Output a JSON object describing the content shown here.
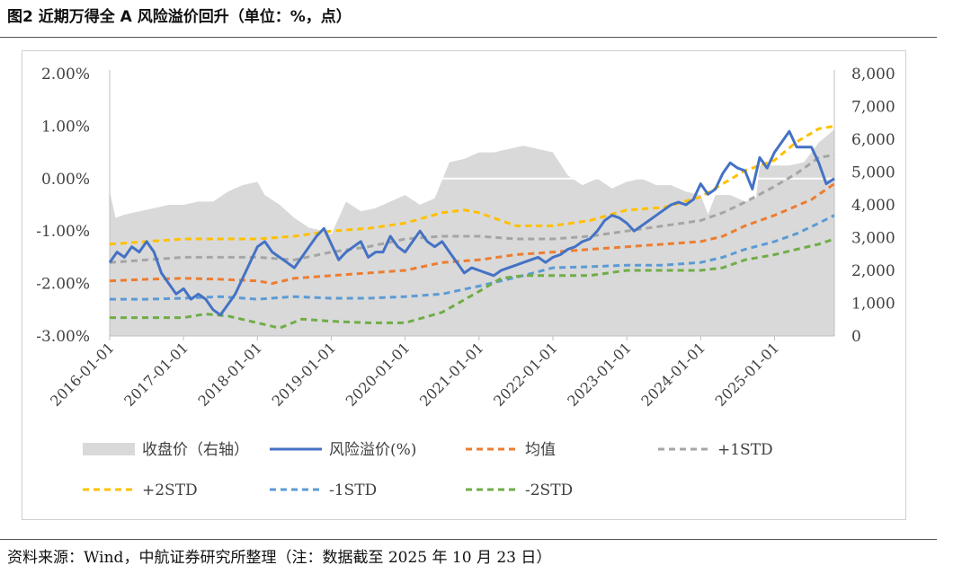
{
  "figure": {
    "title": "图2  近期万得全 A 风险溢价回升（单位：%，点）",
    "source": "资料来源：Wind，中航证券研究所整理（注：数据截至 2025 年 10 月 23 日）"
  },
  "colors": {
    "index": "#d9d9d9",
    "premium": "#4472c4",
    "mean": "#ed7d31",
    "plus1": "#a5a5a5",
    "plus2": "#ffc000",
    "minus1": "#5b9bd5",
    "minus2": "#70ad47"
  },
  "chart_data": {
    "type": "line",
    "title": "",
    "xlabel": "",
    "ylabel": "",
    "y_left_range": [
      -3,
      2
    ],
    "y_right_range": [
      0,
      8000
    ],
    "y_left_ticks": [
      "2.00%",
      "1.00%",
      "0.00%",
      "-1.00%",
      "-2.00%",
      "-3.00%"
    ],
    "y_right_ticks": [
      "8,000",
      "7,000",
      "6,000",
      "5,000",
      "4,000",
      "3,000",
      "2,000",
      "1,000",
      "0"
    ],
    "x_range": [
      2016.0,
      2025.81
    ],
    "x_ticks": [
      "2016-01-01",
      "2017-01-01",
      "2018-01-01",
      "2019-01-01",
      "2020-01-01",
      "2021-01-01",
      "2022-01-01",
      "2023-01-01",
      "2024-01-01",
      "2025-01-01"
    ],
    "grid": false,
    "legend_position": "bottom",
    "area": {
      "name": "收盘价（右轴）",
      "axis": "right",
      "x": [
        2016.0,
        2016.08,
        2016.2,
        2016.4,
        2016.6,
        2016.8,
        2017.0,
        2017.2,
        2017.4,
        2017.6,
        2017.8,
        2018.0,
        2018.1,
        2018.3,
        2018.5,
        2018.7,
        2018.9,
        2019.0,
        2019.2,
        2019.4,
        2019.6,
        2019.8,
        2020.0,
        2020.2,
        2020.4,
        2020.6,
        2020.8,
        2021.0,
        2021.2,
        2021.4,
        2021.6,
        2021.8,
        2022.0,
        2022.2,
        2022.4,
        2022.6,
        2022.8,
        2023.0,
        2023.2,
        2023.4,
        2023.6,
        2023.8,
        2024.0,
        2024.1,
        2024.2,
        2024.4,
        2024.6,
        2024.75,
        2024.8,
        2025.0,
        2025.2,
        2025.4,
        2025.6,
        2025.81
      ],
      "values": [
        4400,
        3600,
        3700,
        3800,
        3900,
        4000,
        4000,
        4100,
        4100,
        4400,
        4600,
        4700,
        4300,
        4000,
        3600,
        3300,
        3200,
        3100,
        4100,
        3800,
        3900,
        4100,
        4300,
        4000,
        4200,
        5300,
        5400,
        5600,
        5600,
        5700,
        5800,
        5700,
        5600,
        4900,
        4600,
        4800,
        4500,
        4700,
        4800,
        4600,
        4600,
        4400,
        4300,
        3700,
        4300,
        4300,
        4100,
        4200,
        5200,
        5200,
        5200,
        5300,
        5900,
        6300
      ]
    },
    "series": [
      {
        "name": "风险溢价(%)",
        "axis": "left",
        "x": [
          2016.0,
          2016.1,
          2016.2,
          2016.3,
          2016.4,
          2016.5,
          2016.6,
          2016.7,
          2016.8,
          2016.9,
          2017.0,
          2017.1,
          2017.2,
          2017.3,
          2017.4,
          2017.5,
          2017.6,
          2017.7,
          2017.8,
          2017.9,
          2018.0,
          2018.1,
          2018.2,
          2018.3,
          2018.4,
          2018.5,
          2018.6,
          2018.7,
          2018.8,
          2018.9,
          2019.0,
          2019.1,
          2019.2,
          2019.3,
          2019.4,
          2019.5,
          2019.6,
          2019.7,
          2019.8,
          2019.9,
          2020.0,
          2020.1,
          2020.2,
          2020.3,
          2020.4,
          2020.5,
          2020.6,
          2020.7,
          2020.8,
          2020.9,
          2021.0,
          2021.1,
          2021.2,
          2021.3,
          2021.4,
          2021.5,
          2021.6,
          2021.7,
          2021.8,
          2021.9,
          2022.0,
          2022.1,
          2022.2,
          2022.3,
          2022.4,
          2022.5,
          2022.6,
          2022.7,
          2022.8,
          2022.9,
          2023.0,
          2023.1,
          2023.2,
          2023.3,
          2023.4,
          2023.5,
          2023.6,
          2023.7,
          2023.8,
          2023.9,
          2024.0,
          2024.1,
          2024.2,
          2024.3,
          2024.4,
          2024.5,
          2024.6,
          2024.7,
          2024.8,
          2024.9,
          2025.0,
          2025.1,
          2025.2,
          2025.3,
          2025.4,
          2025.5,
          2025.6,
          2025.7,
          2025.81
        ],
        "values": [
          -1.6,
          -1.4,
          -1.5,
          -1.3,
          -1.4,
          -1.2,
          -1.4,
          -1.8,
          -2.0,
          -2.2,
          -2.1,
          -2.3,
          -2.2,
          -2.3,
          -2.5,
          -2.6,
          -2.4,
          -2.2,
          -1.9,
          -1.6,
          -1.3,
          -1.2,
          -1.4,
          -1.5,
          -1.6,
          -1.7,
          -1.5,
          -1.3,
          -1.1,
          -0.95,
          -1.25,
          -1.55,
          -1.4,
          -1.3,
          -1.2,
          -1.5,
          -1.4,
          -1.4,
          -1.1,
          -1.3,
          -1.4,
          -1.2,
          -1.0,
          -1.2,
          -1.3,
          -1.2,
          -1.4,
          -1.6,
          -1.8,
          -1.7,
          -1.75,
          -1.8,
          -1.85,
          -1.75,
          -1.7,
          -1.65,
          -1.6,
          -1.55,
          -1.5,
          -1.6,
          -1.5,
          -1.45,
          -1.35,
          -1.3,
          -1.2,
          -1.15,
          -1.0,
          -0.8,
          -0.7,
          -0.75,
          -0.85,
          -1.0,
          -0.9,
          -0.8,
          -0.7,
          -0.6,
          -0.5,
          -0.45,
          -0.5,
          -0.4,
          -0.1,
          -0.3,
          -0.2,
          0.1,
          0.3,
          0.2,
          0.15,
          -0.2,
          0.4,
          0.2,
          0.5,
          0.7,
          0.9,
          0.6,
          0.6,
          0.6,
          0.3,
          -0.1,
          0.0
        ]
      },
      {
        "name": "均值",
        "axis": "left",
        "x": [
          2016.0,
          2016.5,
          2017.0,
          2017.5,
          2018.0,
          2018.2,
          2018.5,
          2019.0,
          2019.5,
          2020.0,
          2020.5,
          2021.0,
          2021.5,
          2022.0,
          2022.5,
          2023.0,
          2023.5,
          2024.0,
          2024.3,
          2024.6,
          2025.0,
          2025.5,
          2025.81
        ],
        "values": [
          -1.95,
          -1.92,
          -1.9,
          -1.92,
          -1.95,
          -2.0,
          -1.9,
          -1.85,
          -1.8,
          -1.75,
          -1.6,
          -1.55,
          -1.45,
          -1.4,
          -1.35,
          -1.3,
          -1.25,
          -1.2,
          -1.1,
          -0.9,
          -0.7,
          -0.4,
          -0.1
        ]
      },
      {
        "name": "+1STD",
        "axis": "left",
        "x": [
          2016.0,
          2016.5,
          2017.0,
          2017.5,
          2018.0,
          2018.5,
          2019.0,
          2019.5,
          2020.0,
          2020.5,
          2021.0,
          2021.5,
          2022.0,
          2022.5,
          2023.0,
          2023.5,
          2024.0,
          2024.3,
          2024.6,
          2025.0,
          2025.3,
          2025.6,
          2025.81
        ],
        "values": [
          -1.6,
          -1.55,
          -1.5,
          -1.5,
          -1.5,
          -1.55,
          -1.4,
          -1.3,
          -1.15,
          -1.1,
          -1.1,
          -1.15,
          -1.15,
          -1.1,
          -1.0,
          -0.9,
          -0.8,
          -0.65,
          -0.45,
          -0.15,
          0.1,
          0.4,
          0.45
        ]
      },
      {
        "name": "+2STD",
        "axis": "left",
        "x": [
          2016.0,
          2016.5,
          2017.0,
          2017.5,
          2018.0,
          2018.5,
          2019.0,
          2019.5,
          2020.0,
          2020.5,
          2020.8,
          2021.0,
          2021.5,
          2022.0,
          2022.5,
          2023.0,
          2023.5,
          2024.0,
          2024.3,
          2024.6,
          2025.0,
          2025.3,
          2025.6,
          2025.81
        ],
        "values": [
          -1.25,
          -1.2,
          -1.15,
          -1.15,
          -1.15,
          -1.1,
          -1.0,
          -0.95,
          -0.85,
          -0.65,
          -0.6,
          -0.65,
          -0.9,
          -0.9,
          -0.8,
          -0.6,
          -0.55,
          -0.35,
          -0.1,
          0.15,
          0.35,
          0.7,
          0.95,
          1.0
        ]
      },
      {
        "name": "-1STD",
        "axis": "left",
        "x": [
          2016.0,
          2016.5,
          2017.0,
          2017.5,
          2018.0,
          2018.5,
          2019.0,
          2019.5,
          2020.0,
          2020.5,
          2021.0,
          2021.3,
          2021.6,
          2022.0,
          2022.5,
          2023.0,
          2023.5,
          2024.0,
          2024.3,
          2024.6,
          2025.0,
          2025.3,
          2025.6,
          2025.81
        ],
        "values": [
          -2.3,
          -2.3,
          -2.28,
          -2.25,
          -2.3,
          -2.25,
          -2.28,
          -2.28,
          -2.25,
          -2.2,
          -2.05,
          -1.95,
          -1.85,
          -1.7,
          -1.68,
          -1.65,
          -1.65,
          -1.6,
          -1.5,
          -1.35,
          -1.2,
          -1.05,
          -0.85,
          -0.7
        ]
      },
      {
        "name": "-2STD",
        "axis": "left",
        "x": [
          2016.0,
          2016.5,
          2017.0,
          2017.3,
          2017.6,
          2018.0,
          2018.3,
          2018.6,
          2019.0,
          2019.5,
          2020.0,
          2020.5,
          2021.0,
          2021.3,
          2021.6,
          2022.0,
          2022.5,
          2023.0,
          2023.5,
          2024.0,
          2024.3,
          2024.6,
          2025.0,
          2025.3,
          2025.6,
          2025.81
        ],
        "values": [
          -2.65,
          -2.65,
          -2.65,
          -2.58,
          -2.62,
          -2.75,
          -2.85,
          -2.68,
          -2.72,
          -2.75,
          -2.75,
          -2.55,
          -2.15,
          -1.9,
          -1.85,
          -1.85,
          -1.85,
          -1.75,
          -1.75,
          -1.75,
          -1.7,
          -1.55,
          -1.45,
          -1.35,
          -1.25,
          -1.15
        ]
      }
    ],
    "legend": [
      {
        "label": "收盘价（右轴）",
        "kind": "area",
        "color": "#d9d9d9"
      },
      {
        "label": "风险溢价(%)",
        "kind": "solid",
        "color": "#4472c4"
      },
      {
        "label": "均值",
        "kind": "dash",
        "color": "#ed7d31"
      },
      {
        "label": "+1STD",
        "kind": "dash",
        "color": "#a5a5a5"
      },
      {
        "label": "+2STD",
        "kind": "dash",
        "color": "#ffc000"
      },
      {
        "label": "-1STD",
        "kind": "dash",
        "color": "#5b9bd5"
      },
      {
        "label": "-2STD",
        "kind": "dash",
        "color": "#70ad47"
      }
    ]
  }
}
